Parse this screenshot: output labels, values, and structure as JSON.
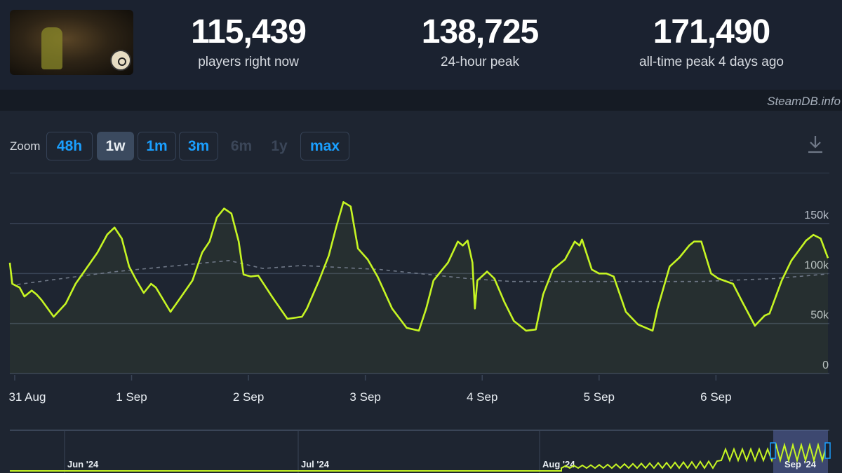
{
  "header": {
    "stats": [
      {
        "value": "115,439",
        "label": "players right now"
      },
      {
        "value": "138,725",
        "label": "24-hour peak"
      },
      {
        "value": "171,490",
        "label": "all-time peak 4 days ago"
      }
    ],
    "brand": "SteamDB.info"
  },
  "zoom": {
    "label": "Zoom",
    "buttons": [
      {
        "label": "48h",
        "state": "normal"
      },
      {
        "label": "1w",
        "state": "active"
      },
      {
        "label": "1m",
        "state": "normal"
      },
      {
        "label": "3m",
        "state": "normal"
      },
      {
        "label": "6m",
        "state": "disabled"
      },
      {
        "label": "1y",
        "state": "disabled"
      },
      {
        "label": "max",
        "state": "normal"
      }
    ],
    "download_icon": "download-icon"
  },
  "colors": {
    "series": "#c6f523",
    "average": "#6f7887",
    "accent": "#1a9fff",
    "background": "#1e2531"
  },
  "chart_data": {
    "type": "line",
    "title": "",
    "xlabel": "",
    "ylabel": "",
    "xlim": [
      "2024-08-30 23:00",
      "2024-09-06 23:00"
    ],
    "ylim": [
      0,
      200000
    ],
    "yticks": [
      {
        "value": 0,
        "label": "0"
      },
      {
        "value": 50000,
        "label": "50k"
      },
      {
        "value": 100000,
        "label": "100k"
      },
      {
        "value": 150000,
        "label": "150k"
      }
    ],
    "xticks": [
      {
        "value": "2024-08-31 00:00",
        "label": "31 Aug"
      },
      {
        "value": "2024-09-01 00:00",
        "label": "1 Sep"
      },
      {
        "value": "2024-09-02 00:00",
        "label": "2 Sep"
      },
      {
        "value": "2024-09-03 00:00",
        "label": "3 Sep"
      },
      {
        "value": "2024-09-04 00:00",
        "label": "4 Sep"
      },
      {
        "value": "2024-09-05 00:00",
        "label": "5 Sep"
      },
      {
        "value": "2024-09-06 00:00",
        "label": "6 Sep"
      }
    ],
    "grid": true,
    "legend": "none",
    "series": [
      {
        "style": "solid",
        "points": [
          [
            "2024-08-30 23:00",
            110800
          ],
          [
            "2024-08-30 23:30",
            89700
          ],
          [
            "2024-08-31 01:00",
            86000
          ],
          [
            "2024-08-31 02:00",
            77000
          ],
          [
            "2024-08-31 03:30",
            83000
          ],
          [
            "2024-08-31 04:30",
            79000
          ],
          [
            "2024-08-31 05:30",
            73600
          ],
          [
            "2024-08-31 08:00",
            56800
          ],
          [
            "2024-08-31 10:30",
            70000
          ],
          [
            "2024-08-31 12:30",
            89700
          ],
          [
            "2024-08-31 15:00",
            107000
          ],
          [
            "2024-08-31 17:00",
            121000
          ],
          [
            "2024-08-31 19:00",
            139000
          ],
          [
            "2024-08-31 20:30",
            146000
          ],
          [
            "2024-08-31 22:00",
            135000
          ],
          [
            "2024-08-31 23:30",
            107000
          ],
          [
            "2024-09-01 01:00",
            93000
          ],
          [
            "2024-09-01 02:30",
            80600
          ],
          [
            "2024-09-01 04:00",
            89700
          ],
          [
            "2024-09-01 05:00",
            86000
          ],
          [
            "2024-09-01 08:00",
            61700
          ],
          [
            "2024-09-01 10:30",
            79000
          ],
          [
            "2024-09-01 12:30",
            93000
          ],
          [
            "2024-09-01 14:30",
            121000
          ],
          [
            "2024-09-01 16:00",
            132000
          ],
          [
            "2024-09-01 17:30",
            156000
          ],
          [
            "2024-09-01 19:00",
            165000
          ],
          [
            "2024-09-01 20:30",
            160000
          ],
          [
            "2024-09-01 22:00",
            132000
          ],
          [
            "2024-09-01 23:00",
            99000
          ],
          [
            "2024-09-02 00:30",
            97000
          ],
          [
            "2024-09-02 02:00",
            98000
          ],
          [
            "2024-09-02 05:00",
            75700
          ],
          [
            "2024-09-02 08:00",
            54700
          ],
          [
            "2024-09-02 11:00",
            56800
          ],
          [
            "2024-09-02 12:00",
            65000
          ],
          [
            "2024-09-02 14:30",
            93000
          ],
          [
            "2024-09-02 16:30",
            118000
          ],
          [
            "2024-09-02 18:00",
            146000
          ],
          [
            "2024-09-02 19:30",
            171490
          ],
          [
            "2024-09-02 21:00",
            167000
          ],
          [
            "2024-09-02 22:30",
            125000
          ],
          [
            "2024-09-03 00:30",
            114000
          ],
          [
            "2024-09-03 02:30",
            97000
          ],
          [
            "2024-09-03 05:30",
            65000
          ],
          [
            "2024-09-03 08:30",
            45600
          ],
          [
            "2024-09-03 11:00",
            42800
          ],
          [
            "2024-09-03 12:30",
            65000
          ],
          [
            "2024-09-03 14:00",
            93000
          ],
          [
            "2024-09-03 17:00",
            111000
          ],
          [
            "2024-09-03 19:00",
            132000
          ],
          [
            "2024-09-03 20:00",
            128000
          ],
          [
            "2024-09-03 21:00",
            133000
          ],
          [
            "2024-09-03 22:00",
            111000
          ],
          [
            "2024-09-03 22:30",
            65000
          ],
          [
            "2024-09-03 23:00",
            93000
          ],
          [
            "2024-09-04 01:00",
            102000
          ],
          [
            "2024-09-04 02:30",
            95000
          ],
          [
            "2024-09-04 04:30",
            72000
          ],
          [
            "2024-09-04 06:30",
            52600
          ],
          [
            "2024-09-04 09:00",
            42800
          ],
          [
            "2024-09-04 11:00",
            44000
          ],
          [
            "2024-09-04 12:30",
            79000
          ],
          [
            "2024-09-04 14:30",
            104000
          ],
          [
            "2024-09-04 17:00",
            114000
          ],
          [
            "2024-09-04 19:00",
            132000
          ],
          [
            "2024-09-04 20:00",
            128000
          ],
          [
            "2024-09-04 20:30",
            134000
          ],
          [
            "2024-09-04 22:30",
            104000
          ],
          [
            "2024-09-05 00:00",
            100000
          ],
          [
            "2024-09-05 01:30",
            100000
          ],
          [
            "2024-09-05 03:00",
            97000
          ],
          [
            "2024-09-05 05:30",
            61700
          ],
          [
            "2024-09-05 08:00",
            49000
          ],
          [
            "2024-09-05 11:00",
            42800
          ],
          [
            "2024-09-05 12:00",
            65000
          ],
          [
            "2024-09-05 14:30",
            107000
          ],
          [
            "2024-09-05 16:30",
            116000
          ],
          [
            "2024-09-05 18:30",
            128000
          ],
          [
            "2024-09-05 19:30",
            132000
          ],
          [
            "2024-09-05 21:00",
            132000
          ],
          [
            "2024-09-05 23:00",
            100000
          ],
          [
            "2024-09-06 00:30",
            95000
          ],
          [
            "2024-09-06 03:30",
            89700
          ],
          [
            "2024-09-06 05:30",
            70800
          ],
          [
            "2024-09-06 08:00",
            47700
          ],
          [
            "2024-09-06 10:00",
            58000
          ],
          [
            "2024-09-06 11:00",
            60000
          ],
          [
            "2024-09-06 13:30",
            93000
          ],
          [
            "2024-09-06 15:30",
            113000
          ],
          [
            "2024-09-06 18:30",
            133000
          ],
          [
            "2024-09-06 20:00",
            138725
          ],
          [
            "2024-09-06 21:30",
            135000
          ],
          [
            "2024-09-06 23:00",
            115439
          ]
        ]
      },
      {
        "style": "dashed",
        "points": [
          [
            "2024-08-31 00:30",
            89000
          ],
          [
            "2024-08-31 20:00",
            101600
          ],
          [
            "2024-09-01 20:00",
            113000
          ],
          [
            "2024-09-02 03:00",
            105000
          ],
          [
            "2024-09-02 11:00",
            108000
          ],
          [
            "2024-09-03 03:00",
            104000
          ],
          [
            "2024-09-03 21:00",
            95000
          ],
          [
            "2024-09-04 06:00",
            92000
          ],
          [
            "2024-09-05 21:00",
            92000
          ],
          [
            "2024-09-06 12:00",
            95000
          ],
          [
            "2024-09-06 23:00",
            99600
          ]
        ]
      }
    ]
  },
  "navigator": {
    "labels": [
      "Jun '24",
      "Jul '24",
      "Aug '24",
      "Sep '24"
    ]
  }
}
